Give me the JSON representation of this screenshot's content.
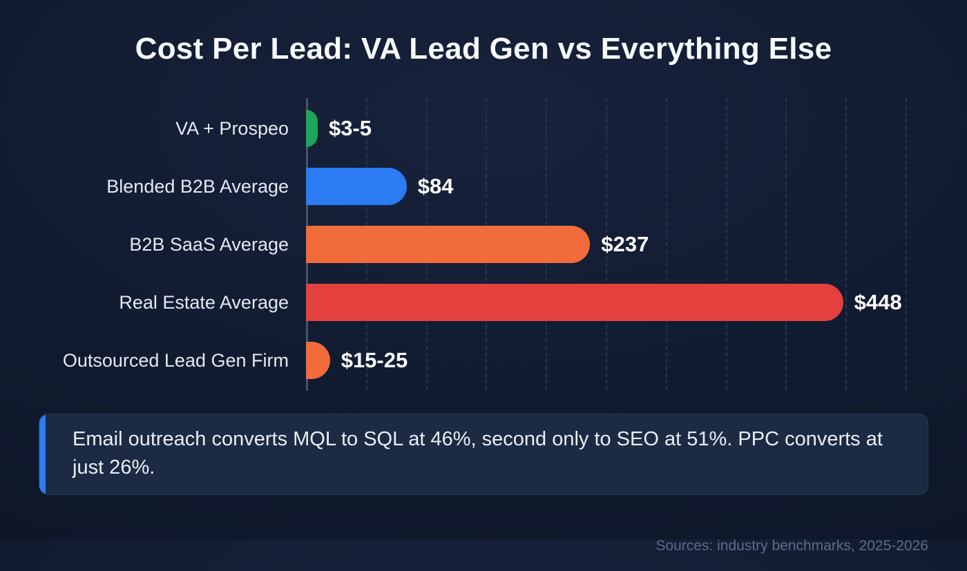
{
  "title": "Cost Per Lead: VA Lead Gen vs Everything Else",
  "chart_data": {
    "type": "bar",
    "orientation": "horizontal",
    "title": "Cost Per Lead: VA Lead Gen vs Everything Else",
    "categories": [
      "VA + Prospeo",
      "Blended B2B Average",
      "B2B SaaS Average",
      "Real Estate Average",
      "Outsourced Lead Gen Firm"
    ],
    "values": [
      4,
      84,
      237,
      448,
      20
    ],
    "value_labels": [
      "$3-5",
      "$84",
      "$237",
      "$448",
      "$15-25"
    ],
    "bar_colors": [
      "#1fa65a",
      "#2b7bf3",
      "#f26b3a",
      "#e4403e",
      "#f26b3a"
    ],
    "xlim": [
      0,
      530
    ],
    "gridline_interval": 50,
    "grid": true,
    "legend": false
  },
  "callout": {
    "text": "Email outreach converts MQL to SQL at 46%, second only to SEO at 51%. PPC converts at just 26%.",
    "accent_color": "#2b7bf3"
  },
  "footer": {
    "source": "Sources: industry benchmarks, 2025-2026"
  },
  "colors": {
    "background": "#101a2e",
    "callout_bg": "#1d2a43",
    "text": "#f6f8fc",
    "muted_text": "#5d6c87",
    "axis": "#45526c",
    "gridline": "#273550"
  }
}
